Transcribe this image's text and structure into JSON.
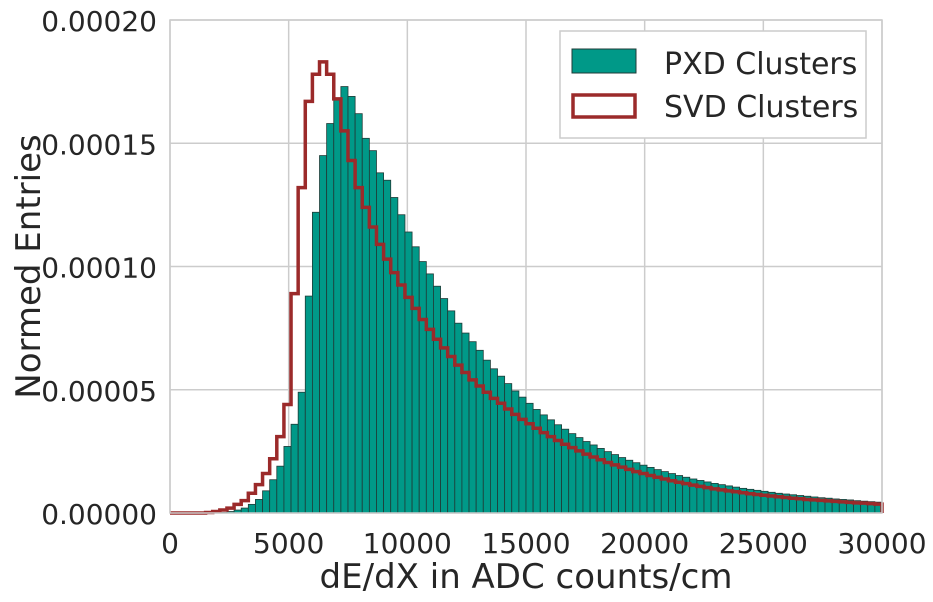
{
  "chart_data": {
    "type": "histogram",
    "title": "",
    "xlabel": "dE/dX in ADC counts/cm",
    "ylabel": "Normed Entries",
    "xlim": [
      0,
      30000
    ],
    "ylim": [
      0,
      0.0002
    ],
    "grid": true,
    "legend_placement": "top-right",
    "bin_width": 300,
    "xticks": [
      0,
      5000,
      10000,
      15000,
      20000,
      25000,
      30000
    ],
    "xtick_labels": [
      "0",
      "5000",
      "10000",
      "15000",
      "20000",
      "25000",
      "30000"
    ],
    "yticks": [
      0,
      5e-05,
      0.0001,
      0.00015,
      0.0002
    ],
    "ytick_labels": [
      "0.00000",
      "0.00005",
      "0.00010",
      "0.00015",
      "0.00020"
    ],
    "series": [
      {
        "name": "PXD Clusters",
        "style": "filled",
        "color": "#009988",
        "edge_color": "#1f3b37",
        "values": [
          0,
          0,
          0,
          0,
          0,
          0,
          0,
          2e-07,
          6e-07,
          1.2e-06,
          2e-06,
          3.5e-06,
          5.5e-06,
          9e-06,
          1.35e-05,
          1.9e-05,
          2.7e-05,
          3.6e-05,
          4.9e-05,
          8.8e-05,
          0.000122,
          0.000145,
          0.000158,
          0.000168,
          0.000173,
          0.000169,
          0.000162,
          0.000152,
          0.000147,
          0.000138,
          0.000135,
          0.000128,
          0.000121,
          0.000114,
          0.000108,
          0.000102,
          9.7e-05,
          9.2e-05,
          8.7e-05,
          8.2e-05,
          7.7e-05,
          7.3e-05,
          6.95e-05,
          6.6e-05,
          6.2e-05,
          5.85e-05,
          5.55e-05,
          5.25e-05,
          4.95e-05,
          4.7e-05,
          4.45e-05,
          4.2e-05,
          3.98e-05,
          3.78e-05,
          3.58e-05,
          3.4e-05,
          3.22e-05,
          3.06e-05,
          2.9e-05,
          2.76e-05,
          2.62e-05,
          2.49e-05,
          2.37e-05,
          2.25e-05,
          2.14e-05,
          2.04e-05,
          1.94e-05,
          1.85e-05,
          1.76e-05,
          1.68e-05,
          1.6e-05,
          1.52e-05,
          1.45e-05,
          1.38e-05,
          1.32e-05,
          1.26e-05,
          1.2e-05,
          1.15e-05,
          1.1e-05,
          1.05e-05,
          1e-05,
          9.6e-06,
          9.2e-06,
          8.8e-06,
          8.4e-06,
          8e-06,
          7.7e-06,
          7.4e-06,
          7.1e-06,
          6.8e-06,
          6.5e-06,
          6.2e-06,
          6e-06,
          5.7e-06,
          5.5e-06,
          5.3e-06,
          5e-06,
          4.8e-06,
          4.6e-06,
          4.4e-06
        ]
      },
      {
        "name": "SVD Clusters",
        "style": "step",
        "color": "#9b2a2a",
        "values": [
          0,
          0,
          0,
          0,
          0,
          2e-07,
          6e-07,
          1.2e-06,
          2e-06,
          3.5e-06,
          5e-06,
          8e-06,
          1.15e-05,
          1.6e-05,
          2.2e-05,
          3.1e-05,
          4.4e-05,
          8.9e-05,
          0.000132,
          0.000167,
          0.000178,
          0.000183,
          0.000178,
          0.000168,
          0.000155,
          0.000143,
          0.000132,
          0.000124,
          0.000116,
          0.000109,
          0.000103,
          9.75e-05,
          9.25e-05,
          8.75e-05,
          8.3e-05,
          7.85e-05,
          7.45e-05,
          7.05e-05,
          6.7e-05,
          6.35e-05,
          6e-05,
          5.7e-05,
          5.4e-05,
          5.15e-05,
          4.9e-05,
          4.65e-05,
          4.45e-05,
          4.22e-05,
          4e-05,
          3.8e-05,
          3.62e-05,
          3.44e-05,
          3.26e-05,
          3.1e-05,
          2.94e-05,
          2.79e-05,
          2.65e-05,
          2.52e-05,
          2.39e-05,
          2.27e-05,
          2.16e-05,
          2.05e-05,
          1.95e-05,
          1.86e-05,
          1.77e-05,
          1.68e-05,
          1.6e-05,
          1.52e-05,
          1.45e-05,
          1.38e-05,
          1.31e-05,
          1.25e-05,
          1.19e-05,
          1.13e-05,
          1.08e-05,
          1.03e-05,
          9.8e-06,
          9.4e-06,
          9e-06,
          8.6e-06,
          8.2e-06,
          7.8e-06,
          7.5e-06,
          7.2e-06,
          6.9e-06,
          6.6e-06,
          6.3e-06,
          6e-06,
          5.8e-06,
          5.5e-06,
          5.3e-06,
          5.1e-06,
          4.9e-06,
          4.7e-06,
          4.5e-06,
          4.3e-06,
          4.1e-06,
          4e-06,
          3.8e-06,
          3.6e-06
        ]
      }
    ]
  },
  "legend": {
    "items": [
      {
        "label": "PXD Clusters"
      },
      {
        "label": "SVD Clusters"
      }
    ]
  },
  "colors": {
    "grid": "#cccccc",
    "frame": "#cccccc",
    "text": "#262626"
  }
}
